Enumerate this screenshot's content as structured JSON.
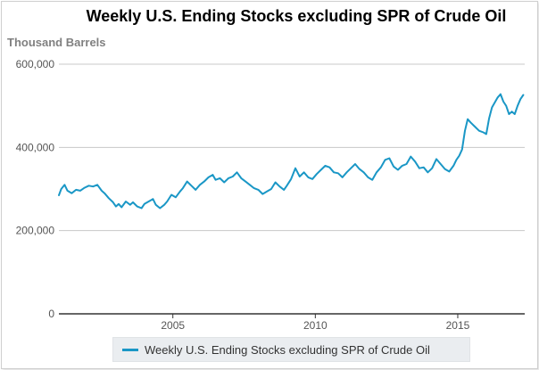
{
  "chart_data": {
    "type": "line",
    "title": "Weekly U.S. Ending Stocks excluding SPR of Crude Oil",
    "ylabel": "Thousand Barrels",
    "xlabel": "",
    "xlim": [
      2001.0,
      2017.35
    ],
    "ylim": [
      0,
      600000
    ],
    "x_ticks": [
      2005,
      2010,
      2015
    ],
    "x_tick_labels": [
      "2005",
      "2010",
      "2015"
    ],
    "y_ticks": [
      0,
      200000,
      400000,
      600000
    ],
    "y_tick_labels": [
      "0",
      "200,000",
      "400,000",
      "600,000"
    ],
    "grid": "horizontal",
    "legend": "bottom",
    "series": [
      {
        "name": "Weekly U.S. Ending Stocks excluding SPR of Crude Oil",
        "color": "#1a97c6",
        "x": [
          2001.0,
          2001.08,
          2001.2,
          2001.3,
          2001.45,
          2001.6,
          2001.75,
          2001.9,
          2002.05,
          2002.2,
          2002.35,
          2002.5,
          2002.6,
          2002.75,
          2002.9,
          2003.0,
          2003.1,
          2003.2,
          2003.35,
          2003.5,
          2003.6,
          2003.75,
          2003.9,
          2004.0,
          2004.15,
          2004.3,
          2004.4,
          2004.55,
          2004.7,
          2004.8,
          2004.95,
          2005.1,
          2005.25,
          2005.35,
          2005.5,
          2005.65,
          2005.8,
          2005.95,
          2006.1,
          2006.25,
          2006.4,
          2006.5,
          2006.65,
          2006.8,
          2006.95,
          2007.1,
          2007.25,
          2007.4,
          2007.55,
          2007.7,
          2007.85,
          2008.0,
          2008.15,
          2008.3,
          2008.45,
          2008.6,
          2008.75,
          2008.9,
          2009.0,
          2009.15,
          2009.3,
          2009.45,
          2009.6,
          2009.75,
          2009.9,
          2010.05,
          2010.2,
          2010.35,
          2010.5,
          2010.65,
          2010.8,
          2010.95,
          2011.1,
          2011.25,
          2011.4,
          2011.55,
          2011.7,
          2011.85,
          2012.0,
          2012.15,
          2012.3,
          2012.45,
          2012.6,
          2012.75,
          2012.9,
          2013.05,
          2013.2,
          2013.35,
          2013.5,
          2013.65,
          2013.8,
          2013.95,
          2014.1,
          2014.25,
          2014.4,
          2014.55,
          2014.7,
          2014.85,
          2014.95,
          2015.05,
          2015.15,
          2015.25,
          2015.35,
          2015.45,
          2015.6,
          2015.75,
          2015.9,
          2016.0,
          2016.1,
          2016.2,
          2016.3,
          2016.4,
          2016.5,
          2016.6,
          2016.7,
          2016.8,
          2016.9,
          2017.0,
          2017.1,
          2017.2,
          2017.3
        ],
        "y": [
          285000,
          300000,
          310000,
          296000,
          290000,
          298000,
          296000,
          303000,
          308000,
          306000,
          310000,
          296000,
          290000,
          278000,
          268000,
          258000,
          264000,
          256000,
          270000,
          262000,
          268000,
          258000,
          254000,
          264000,
          270000,
          276000,
          262000,
          254000,
          262000,
          270000,
          286000,
          280000,
          294000,
          302000,
          318000,
          308000,
          298000,
          310000,
          318000,
          328000,
          334000,
          322000,
          326000,
          316000,
          326000,
          330000,
          340000,
          326000,
          318000,
          310000,
          302000,
          298000,
          288000,
          294000,
          300000,
          316000,
          306000,
          298000,
          308000,
          324000,
          350000,
          330000,
          340000,
          328000,
          324000,
          336000,
          346000,
          356000,
          352000,
          340000,
          338000,
          328000,
          340000,
          350000,
          360000,
          348000,
          340000,
          328000,
          322000,
          340000,
          352000,
          370000,
          374000,
          354000,
          346000,
          356000,
          360000,
          378000,
          366000,
          350000,
          352000,
          340000,
          350000,
          372000,
          360000,
          348000,
          342000,
          356000,
          370000,
          380000,
          395000,
          440000,
          468000,
          460000,
          450000,
          440000,
          436000,
          432000,
          470000,
          496000,
          508000,
          520000,
          528000,
          510000,
          500000,
          480000,
          486000,
          480000,
          500000,
          516000,
          526000
        ]
      }
    ]
  }
}
